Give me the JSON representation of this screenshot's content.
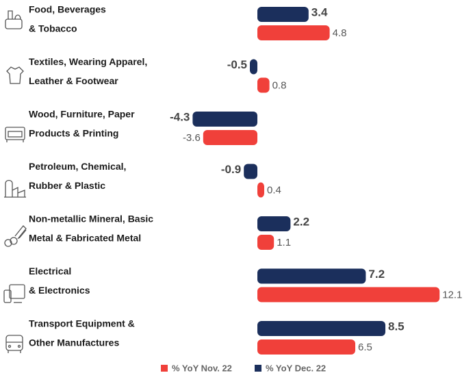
{
  "chart_data": {
    "type": "bar",
    "orientation": "horizontal",
    "categories": [
      [
        "Food, Beverages",
        "& Tobacco"
      ],
      [
        "Textiles, Wearing Apparel,",
        "Leather & Footwear"
      ],
      [
        "Wood, Furniture, Paper",
        "Products & Printing"
      ],
      [
        "Petroleum, Chemical,",
        "Rubber & Plastic"
      ],
      [
        "Non-metallic Mineral, Basic",
        "Metal & Fabricated Metal"
      ],
      [
        "Electrical",
        "& Electronics"
      ],
      [
        "Transport Equipment &",
        "Other Manufactures"
      ]
    ],
    "series": [
      {
        "name": "% YoY Dec. 22",
        "color": "#1b2f5c",
        "values": [
          3.4,
          -0.5,
          -4.3,
          -0.9,
          2.2,
          7.2,
          8.5
        ]
      },
      {
        "name": "% YoY Nov. 22",
        "color": "#f0403a",
        "values": [
          4.8,
          0.8,
          -3.6,
          0.4,
          1.1,
          12.1,
          6.5
        ]
      }
    ],
    "legend_order": [
      1,
      0
    ]
  }
}
